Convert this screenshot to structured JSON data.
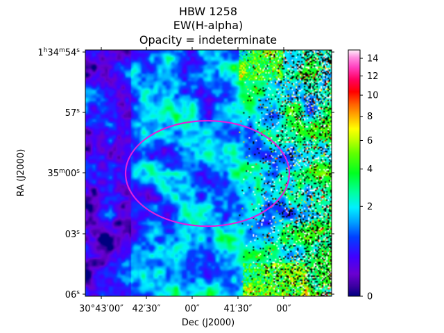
{
  "chart_data": {
    "type": "heatmap",
    "title_lines": [
      "HBW 1258",
      "EW(H-alpha)",
      "Opacity = indeterminate"
    ],
    "xlabel": "Dec (J2000)",
    "ylabel": "RA (J2000)",
    "x_ticks": [
      {
        "label": "30°43′00″"
      },
      {
        "label": "42′30″"
      },
      {
        "label": "00″"
      },
      {
        "label": "41′30″"
      },
      {
        "label": "00″"
      }
    ],
    "y_ticks": [
      {
        "main": "1",
        "sup1": "h",
        "mid": "34",
        "sup2": "m",
        "last": "54",
        "sup3": "s"
      },
      {
        "main": "57",
        "sup1": "s"
      },
      {
        "main": "35",
        "sup1": "m",
        "mid": "00",
        "sup2": "s"
      },
      {
        "main": "03",
        "sup1": "s"
      },
      {
        "main": "06",
        "sup1": "s"
      }
    ],
    "colorbar": {
      "colormap": "gist_ncar",
      "range": [
        0,
        15
      ],
      "scale": "sqrt",
      "ticks": [
        0,
        2,
        4,
        6,
        8,
        10,
        12,
        14
      ]
    },
    "annotations": [
      {
        "type": "ellipse",
        "color": "#dd22dd",
        "meaning": "aperture"
      }
    ]
  },
  "colors": {
    "ellipse": "#dd22dd",
    "axes": "#000000"
  }
}
